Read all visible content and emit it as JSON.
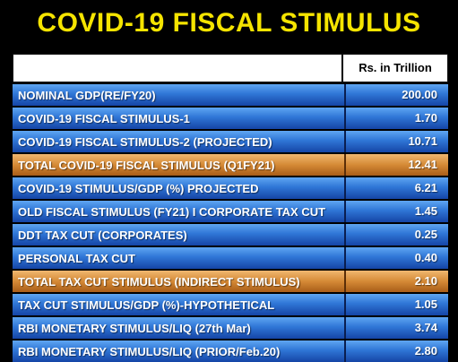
{
  "title": "COVID-19 FISCAL STIMULUS",
  "unit_header": "Rs. in Trillion",
  "colors": {
    "title": "#f5e400",
    "row_blue": "#2f76d6",
    "row_highlight": "#d58a36",
    "background": "#000000"
  },
  "rows": [
    {
      "label": "NOMINAL GDP(RE/FY20)",
      "value": "200.00",
      "highlight": false
    },
    {
      "label": "COVID-19 FISCAL STIMULUS-1",
      "value": "1.70",
      "highlight": false
    },
    {
      "label": "COVID-19  FISCAL STIMULUS-2 (PROJECTED)",
      "value": "10.71",
      "highlight": false
    },
    {
      "label": "TOTAL COVID-19 FISCAL STIMULUS (Q1FY21)",
      "value": "12.41",
      "highlight": true
    },
    {
      "label": "COVID-19 STIMULUS/GDP (%) PROJECTED",
      "value": "6.21",
      "highlight": false
    },
    {
      "label": "OLD FISCAL STIMULUS (FY21) I CORPORATE TAX CUT",
      "value": "1.45",
      "highlight": false
    },
    {
      "label": "DDT TAX CUT (CORPORATES)",
      "value": "0.25",
      "highlight": false
    },
    {
      "label": "PERSONAL TAX CUT",
      "value": "0.40",
      "highlight": false
    },
    {
      "label": "TOTAL TAX CUT STIMULUS (INDIRECT STIMULUS)",
      "value": "2.10",
      "highlight": true
    },
    {
      "label": "TAX CUT STIMULUS/GDP (%)-HYPOTHETICAL",
      "value": "1.05",
      "highlight": false
    },
    {
      "label": "RBI MONETARY STIMULUS/LIQ (27th Mar)",
      "value": "3.74",
      "highlight": false
    },
    {
      "label": "RBI MONETARY STIMULUS/LIQ (PRIOR/Feb.20)",
      "value": "2.80",
      "highlight": false
    }
  ]
}
